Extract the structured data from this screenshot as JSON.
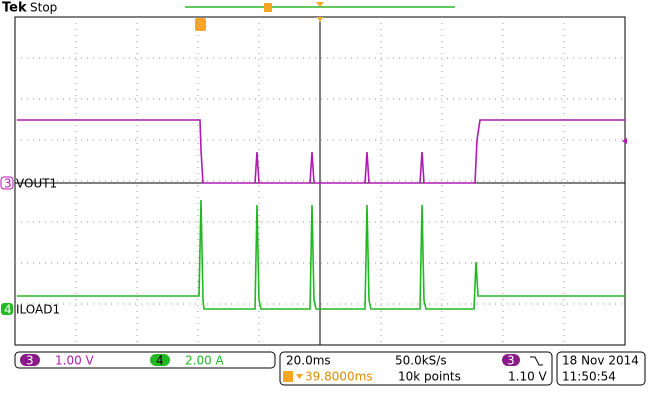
{
  "header": {
    "brand": "Tek",
    "status": "Stop"
  },
  "channels": [
    {
      "number": "3",
      "label": "VOUT1",
      "scale": "1.00 V"
    },
    {
      "number": "4",
      "label": "ILOAD1",
      "scale": "2.00 A"
    }
  ],
  "timebase": {
    "scale": "20.0ms",
    "sample_rate": "50.0kS/s",
    "delay": "39.8000ms",
    "record_length": "10k points"
  },
  "trigger": {
    "source": "3",
    "level": "1.10 V"
  },
  "date": "18 Nov 2014",
  "time": "11:50:54"
}
